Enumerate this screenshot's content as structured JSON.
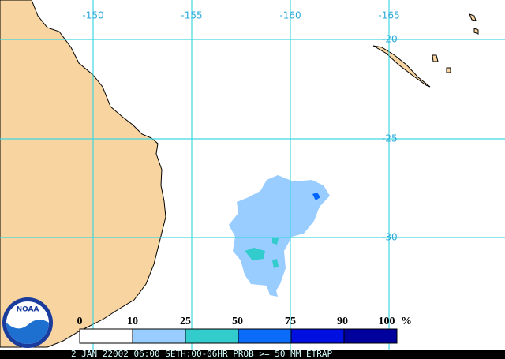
{
  "map": {
    "longitude_labels": [
      "-150",
      "-155",
      "-160",
      "-165"
    ],
    "latitude_labels": [
      "-20",
      "-25",
      "-30"
    ],
    "legend": {
      "labels": [
        "0",
        "10",
        "25",
        "50",
        "75",
        "90",
        "100"
      ],
      "unit": "%"
    },
    "logo": "NOAA",
    "footer": "2 JAN 22002 06:00 SETH:00-06HR PROB >= 50 MM ETRAP"
  }
}
